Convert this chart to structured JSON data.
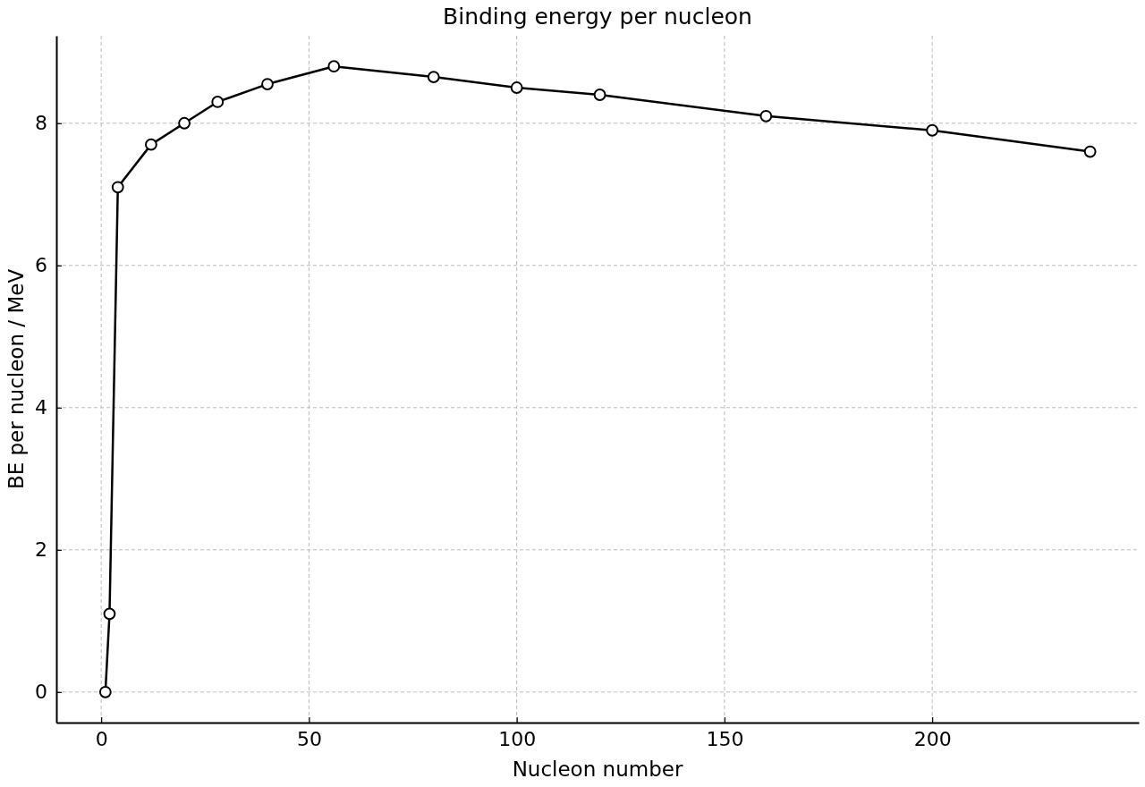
{
  "chart_data": {
    "type": "line",
    "title": "Binding energy per nucleon",
    "xlabel": "Nucleon number",
    "ylabel": "BE per nucleon / MeV",
    "x": [
      1,
      2,
      4,
      12,
      20,
      28,
      40,
      56,
      80,
      100,
      120,
      160,
      200,
      238
    ],
    "series": [
      {
        "color": "#000000",
        "values": [
          0,
          1.1,
          7.1,
          7.7,
          8.0,
          8.3,
          8.55,
          8.8,
          8.65,
          8.5,
          8.4,
          8.1,
          7.9,
          7.6
        ]
      }
    ],
    "xlim": [
      -10.8,
      249.7
    ],
    "ylim": [
      -0.43,
      9.23
    ],
    "xticks": [
      0,
      50,
      100,
      150,
      200
    ],
    "yticks": [
      0,
      2,
      4,
      6,
      8
    ],
    "grid": true,
    "marker": "circle",
    "line_style": "solid"
  }
}
